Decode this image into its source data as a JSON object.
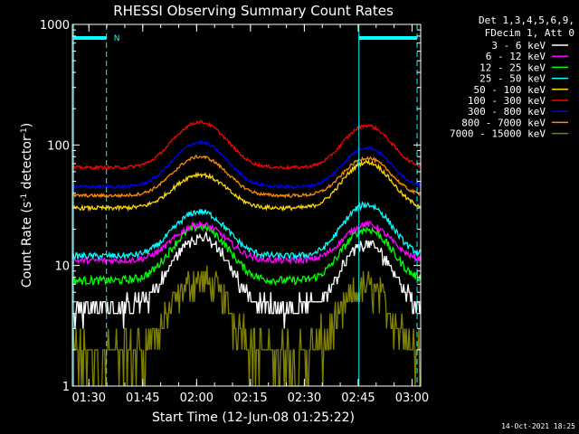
{
  "chart_data": {
    "type": "line",
    "title": "RHESSI Observing Summary Count Rates",
    "xlabel": "Start Time (12-Jun-08 01:25:22)",
    "ylabel_parts": [
      "Count Rate (s",
      "-1",
      " detector",
      "-1",
      ")"
    ],
    "x_unit": "minutes after 01:25:22",
    "xlim": [
      0,
      97
    ],
    "ylim": [
      1,
      1000
    ],
    "yscale": "log",
    "x_ticks": [
      {
        "t": 4.6,
        "label": "01:30"
      },
      {
        "t": 19.6,
        "label": "01:45"
      },
      {
        "t": 34.6,
        "label": "02:00"
      },
      {
        "t": 49.6,
        "label": "02:15"
      },
      {
        "t": 64.6,
        "label": "02:30"
      },
      {
        "t": 79.6,
        "label": "02:45"
      },
      {
        "t": 94.6,
        "label": "03:00"
      }
    ],
    "y_ticks": [
      {
        "v": 1,
        "label": "1"
      },
      {
        "v": 10,
        "label": "10"
      },
      {
        "v": 100,
        "label": "100"
      },
      {
        "v": 1000,
        "label": "1000"
      }
    ],
    "legend_header": [
      "Det 1,3,4,5,6,9,",
      "FDecim 1, Att 0"
    ],
    "legend_position": "right",
    "series": [
      {
        "name": "3 - 6 keV",
        "color": "#ffffff",
        "base": 4.5,
        "peak1": 17,
        "peak2": 15,
        "noise": 0.08,
        "quant": 1
      },
      {
        "name": "6 - 12 keV",
        "color": "#ff00ff",
        "base": 11,
        "peak1": 22,
        "peak2": 22,
        "noise": 0.06,
        "quant": 0
      },
      {
        "name": "12 - 25 keV",
        "color": "#00ff00",
        "base": 7.5,
        "peak1": 21,
        "peak2": 20,
        "noise": 0.08,
        "quant": 0
      },
      {
        "name": "25 - 50 keV",
        "color": "#00ffff",
        "base": 12,
        "peak1": 28,
        "peak2": 32,
        "noise": 0.06,
        "quant": 0
      },
      {
        "name": "50 - 100 keV",
        "color": "#ffd700",
        "base": 30,
        "peak1": 57,
        "peak2": 72,
        "noise": 0.04,
        "quant": 0
      },
      {
        "name": "100 - 300 keV",
        "color": "#ff0000",
        "base": 65,
        "peak1": 155,
        "peak2": 145,
        "noise": 0.03,
        "quant": 0
      },
      {
        "name": "300 - 800 keV",
        "color": "#0000ff",
        "base": 45,
        "peak1": 105,
        "peak2": 95,
        "noise": 0.03,
        "quant": 0
      },
      {
        "name": "800 - 7000 keV",
        "color": "#ff8c00",
        "base": 38,
        "peak1": 80,
        "peak2": 78,
        "noise": 0.03,
        "quant": 0
      },
      {
        "name": "7000 - 15000 keV",
        "color": "#808000",
        "base": 1.8,
        "peak1": 7.5,
        "peak2": 6.5,
        "noise": 0.3,
        "quant": 1
      }
    ],
    "orbit_peaks_t": [
      35.5,
      82.0
    ],
    "markers": [
      {
        "t": 0.3,
        "style": "solid"
      },
      {
        "t": 9.5,
        "style": "dashed"
      },
      {
        "t": 79.8,
        "style": "solid"
      },
      {
        "t": 96.0,
        "style": "dashed"
      }
    ],
    "night_bars": [
      {
        "t0": 0.3,
        "t1": 9.5,
        "label": "N"
      },
      {
        "t0": 79.8,
        "t1": 96.0,
        "label": ""
      }
    ],
    "marker_color": "#00ffff",
    "timestamp": "14-Oct-2021 18:25"
  }
}
